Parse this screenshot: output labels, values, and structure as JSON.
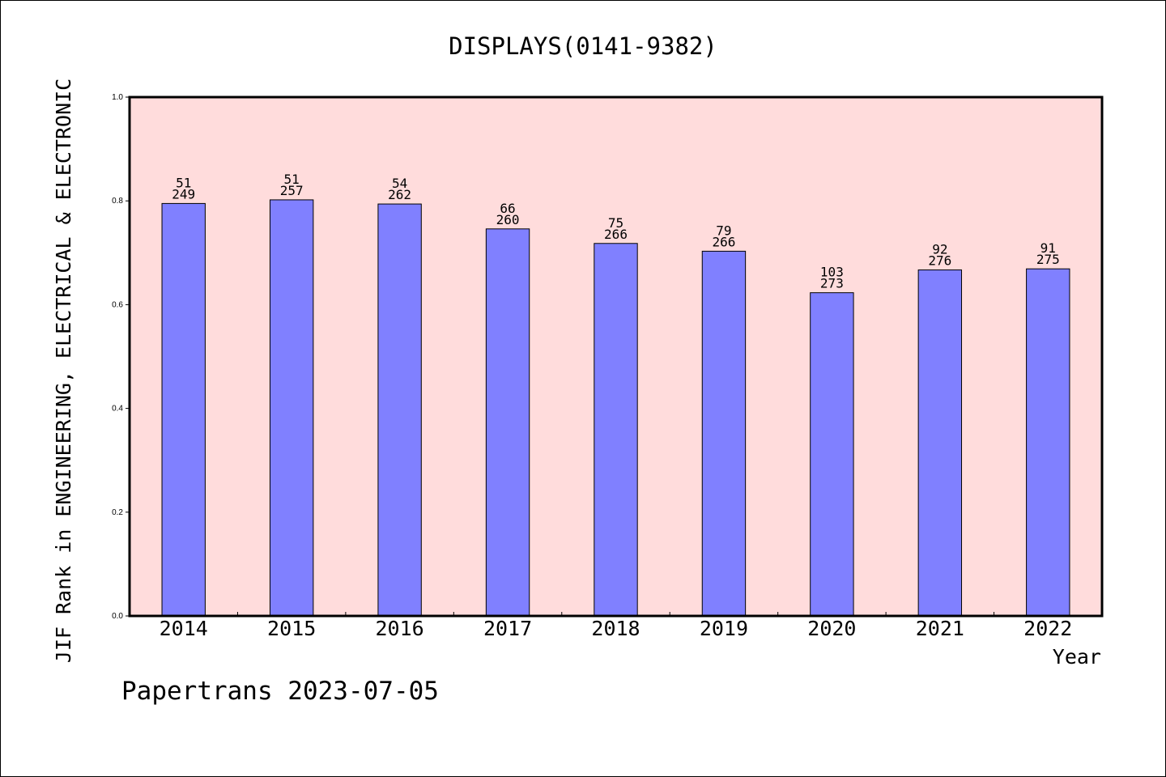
{
  "chart_data": {
    "type": "bar",
    "title": "DISPLAYS(0141-9382)",
    "xlabel": "Year",
    "ylabel": "JIF Rank in ENGINEERING, ELECTRICAL & ELECTRONIC",
    "ylim": [
      0,
      1.0
    ],
    "yticks": [
      "0.0",
      "0.2",
      "0.4",
      "0.6",
      "0.8",
      "1.0"
    ],
    "categories": [
      "2014",
      "2015",
      "2016",
      "2017",
      "2018",
      "2019",
      "2020",
      "2021",
      "2022"
    ],
    "values": [
      0.795,
      0.802,
      0.794,
      0.746,
      0.718,
      0.703,
      0.623,
      0.667,
      0.669
    ],
    "ranks": [
      "51",
      "51",
      "54",
      "66",
      "75",
      "79",
      "103",
      "92",
      "91"
    ],
    "totals": [
      "249",
      "257",
      "262",
      "260",
      "266",
      "266",
      "273",
      "276",
      "275"
    ],
    "grid": false,
    "colors": {
      "bar": "#8080ff",
      "plot_background": "#ffdcdc",
      "frame": "#000000"
    }
  },
  "footer": {
    "text": "Papertrans 2023-07-05"
  }
}
